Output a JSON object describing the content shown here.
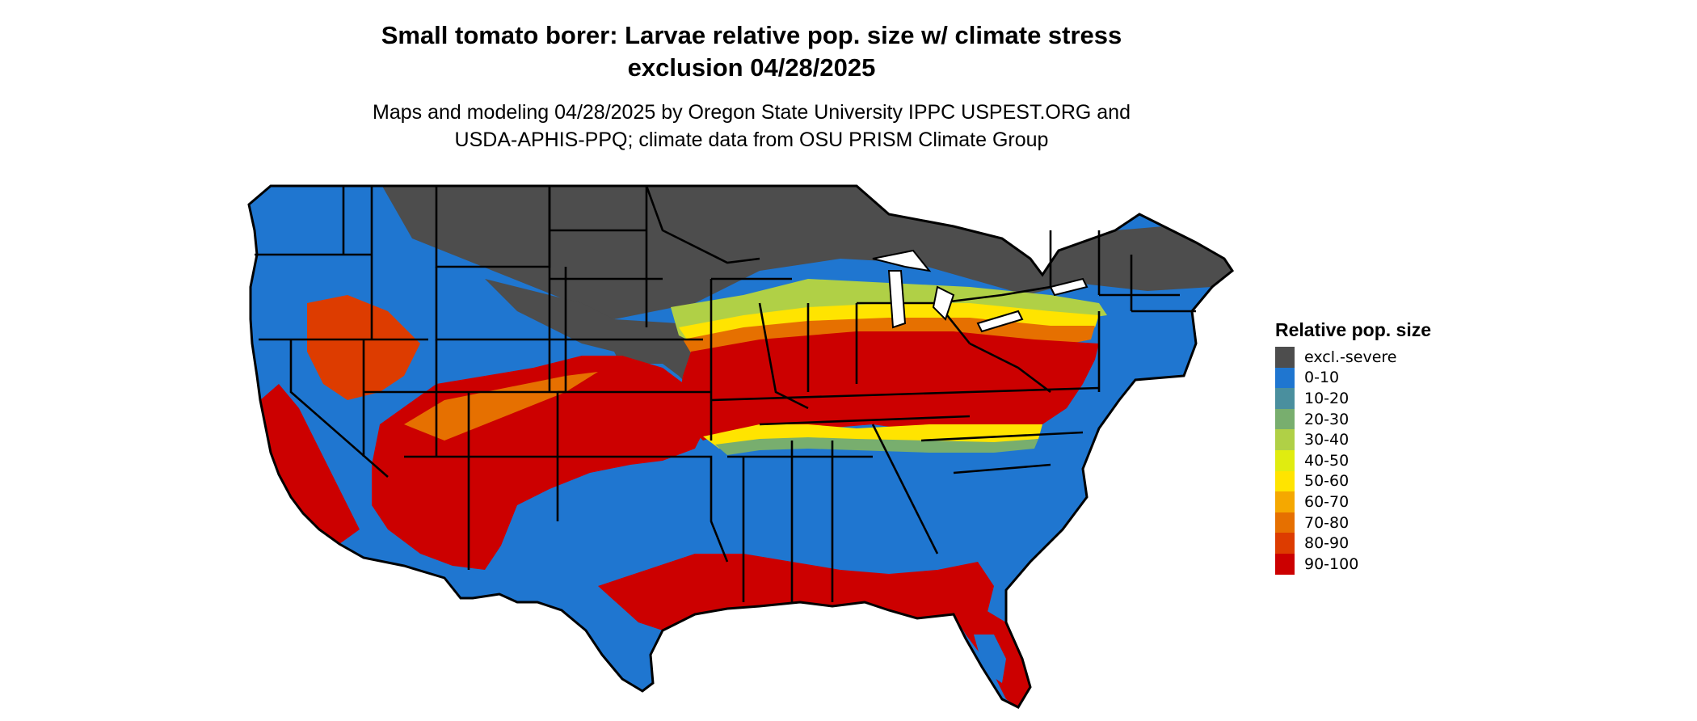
{
  "title_line1": "Small tomato borer: Larvae relative pop. size w/ climate stress",
  "title_line2": "exclusion 04/28/2025",
  "subtitle_line1": "Maps and modeling 04/28/2025 by Oregon State University IPPC USPEST.ORG and",
  "subtitle_line2": "USDA-APHIS-PPQ; climate data from OSU PRISM Climate Group",
  "legend": {
    "title": "Relative pop. size",
    "items": [
      {
        "label": "excl.-severe",
        "color": "#4d4d4d"
      },
      {
        "label": "0-10",
        "color": "#1f76d0"
      },
      {
        "label": "10-20",
        "color": "#4a8f9e"
      },
      {
        "label": "20-30",
        "color": "#78ae6e"
      },
      {
        "label": "30-40",
        "color": "#b0d046"
      },
      {
        "label": "40-50",
        "color": "#e0ec10"
      },
      {
        "label": "50-60",
        "color": "#ffe400"
      },
      {
        "label": "60-70",
        "color": "#f5a800"
      },
      {
        "label": "70-80",
        "color": "#e67000"
      },
      {
        "label": "80-90",
        "color": "#dd3c00"
      },
      {
        "label": "90-100",
        "color": "#cc0000"
      }
    ]
  },
  "map": {
    "region": "contiguous-united-states",
    "boundaries": "state-outlines"
  }
}
